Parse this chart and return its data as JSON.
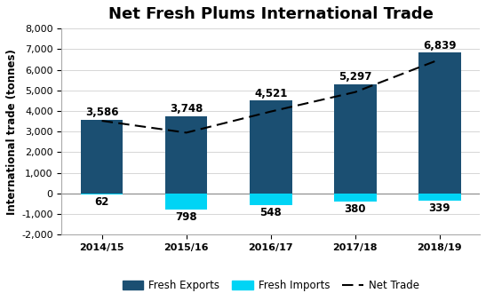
{
  "title": "Net Fresh Plums International Trade",
  "years": [
    "2014/15",
    "2015/16",
    "2016/17",
    "2017/18",
    "2018/19"
  ],
  "exports": [
    3586,
    3748,
    4521,
    5297,
    6839
  ],
  "imports": [
    -62,
    -798,
    -548,
    -380,
    -339
  ],
  "net_trade": [
    3524,
    2950,
    3973,
    4917,
    6500
  ],
  "export_color": "#1b4f72",
  "import_color": "#00d4f5",
  "ylabel": "International trade (tonnes)",
  "ylim": [
    -2000,
    8000
  ],
  "yticks": [
    -2000,
    -1000,
    0,
    1000,
    2000,
    3000,
    4000,
    5000,
    6000,
    7000,
    8000
  ],
  "bar_width": 0.5,
  "export_labels": [
    "3,586",
    "3,748",
    "4,521",
    "5,297",
    "6,839"
  ],
  "import_labels": [
    "62",
    "798",
    "548",
    "380",
    "339"
  ],
  "title_fontsize": 13,
  "axis_fontsize": 8.5,
  "label_fontsize": 8.5,
  "tick_fontsize": 8,
  "background_color": "#ffffff"
}
